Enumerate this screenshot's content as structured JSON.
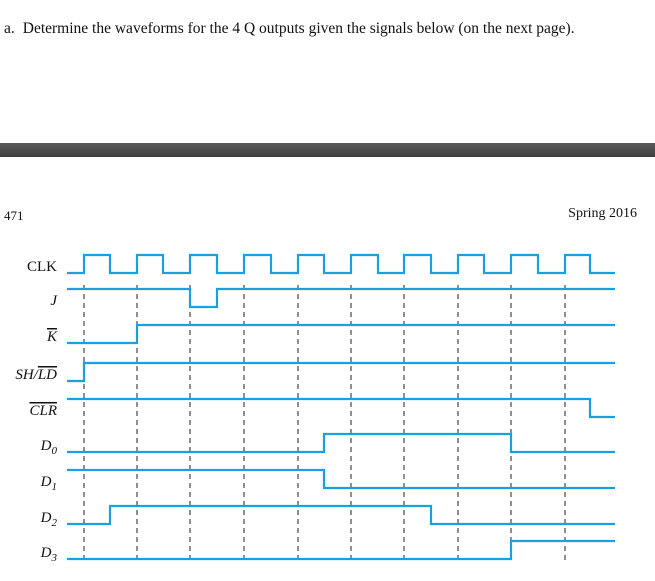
{
  "question": {
    "label": "a.",
    "text": "Determine the waveforms for the 4 Q outputs given the signals below (on the next page)."
  },
  "page_header": {
    "page_number": "471",
    "term": "Spring 2016"
  },
  "timing_diagram": {
    "wave_color": "#1aa0e0",
    "signals": [
      {
        "label": "CLK",
        "kind": "clock"
      },
      {
        "label": "J",
        "italic": true,
        "levels": [
          1,
          1,
          1,
          1,
          1,
          0,
          1,
          1,
          1,
          1,
          1,
          1,
          1,
          1,
          1,
          1,
          1,
          1,
          1,
          1,
          1
        ]
      },
      {
        "label": "K",
        "italic": true,
        "overline": true,
        "levels": [
          0,
          0,
          0,
          1,
          1,
          1,
          1,
          1,
          1,
          1,
          1,
          1,
          1,
          1,
          1,
          1,
          1,
          1,
          1,
          1,
          1
        ]
      },
      {
        "label": "SH/LD",
        "italic": true,
        "overline_part": "LD",
        "levels": [
          0,
          1,
          1,
          1,
          1,
          1,
          1,
          1,
          1,
          1,
          1,
          1,
          1,
          1,
          1,
          1,
          1,
          1,
          1,
          1,
          1
        ]
      },
      {
        "label": "CLR",
        "italic": true,
        "overline": true,
        "levels": [
          1,
          1,
          1,
          1,
          1,
          1,
          1,
          1,
          1,
          1,
          1,
          1,
          1,
          1,
          1,
          1,
          1,
          1,
          1,
          1,
          0
        ]
      },
      {
        "label": "D",
        "subscript": "0",
        "italic": true,
        "levels": [
          0,
          0,
          0,
          0,
          0,
          0,
          0,
          0,
          0,
          0,
          1,
          1,
          1,
          1,
          1,
          1,
          1,
          0,
          0,
          0,
          0
        ]
      },
      {
        "label": "D",
        "subscript": "1",
        "italic": true,
        "levels": [
          1,
          1,
          1,
          1,
          1,
          1,
          1,
          1,
          1,
          1,
          0,
          0,
          0,
          0,
          0,
          0,
          0,
          0,
          0,
          0,
          0
        ]
      },
      {
        "label": "D",
        "subscript": "2",
        "italic": true,
        "levels": [
          0,
          0,
          1,
          1,
          1,
          1,
          1,
          1,
          1,
          1,
          1,
          1,
          1,
          1,
          0,
          0,
          0,
          0,
          0,
          0,
          0
        ]
      },
      {
        "label": "D",
        "subscript": "3",
        "italic": true,
        "levels": [
          0,
          0,
          0,
          0,
          0,
          0,
          0,
          0,
          0,
          0,
          0,
          0,
          0,
          0,
          0,
          0,
          0,
          1,
          1,
          1,
          1
        ]
      }
    ],
    "clock_cycles": 10
  }
}
